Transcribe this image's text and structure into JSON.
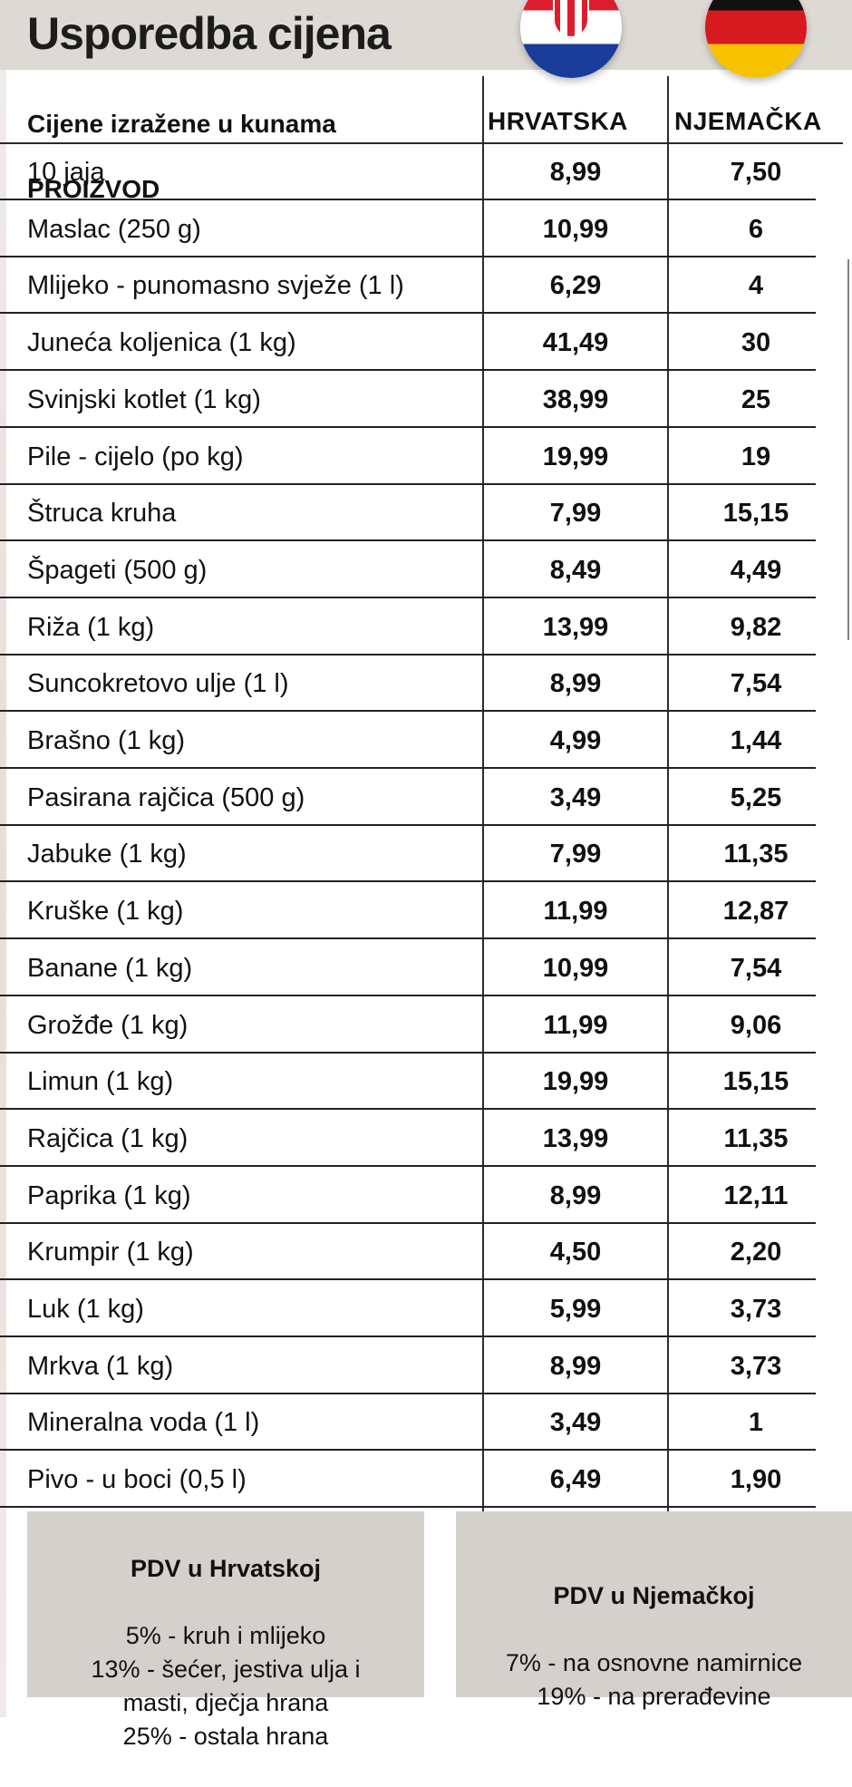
{
  "title": "Usporedba cijena",
  "subheader": {
    "unit_note": "Cijene izražene u kunama",
    "product_header": "PROIZVOD"
  },
  "columns": {
    "croatia": "HRVATSKA",
    "germany": "NJEMAČKA"
  },
  "rows": [
    {
      "product": "10 jaja",
      "croatia": "8,99",
      "germany": "7,50"
    },
    {
      "product": "Maslac (250 g)",
      "croatia": "10,99",
      "germany": "6"
    },
    {
      "product": "Mlijeko - punomasno svježe (1 l)",
      "croatia": "6,29",
      "germany": "4"
    },
    {
      "product": "Juneća koljenica (1 kg)",
      "croatia": "41,49",
      "germany": "30"
    },
    {
      "product": "Svinjski kotlet (1 kg)",
      "croatia": "38,99",
      "germany": "25"
    },
    {
      "product": "Pile - cijelo (po kg)",
      "croatia": "19,99",
      "germany": "19"
    },
    {
      "product": "Štruca kruha",
      "croatia": "7,99",
      "germany": "15,15"
    },
    {
      "product": "Špageti (500 g)",
      "croatia": "8,49",
      "germany": "4,49"
    },
    {
      "product": "Riža (1 kg)",
      "croatia": "13,99",
      "germany": "9,82"
    },
    {
      "product": "Suncokretovo ulje (1 l)",
      "croatia": "8,99",
      "germany": "7,54"
    },
    {
      "product": "Brašno (1 kg)",
      "croatia": "4,99",
      "germany": "1,44"
    },
    {
      "product": "Pasirana rajčica (500 g)",
      "croatia": "3,49",
      "germany": "5,25"
    },
    {
      "product": "Jabuke (1 kg)",
      "croatia": "7,99",
      "germany": "11,35"
    },
    {
      "product": "Kruške (1 kg)",
      "croatia": "11,99",
      "germany": "12,87"
    },
    {
      "product": "Banane (1 kg)",
      "croatia": "10,99",
      "germany": "7,54"
    },
    {
      "product": "Grožđe (1 kg)",
      "croatia": "11,99",
      "germany": "9,06"
    },
    {
      "product": "Limun (1 kg)",
      "croatia": "19,99",
      "germany": "15,15"
    },
    {
      "product": "Rajčica (1 kg)",
      "croatia": "13,99",
      "germany": "11,35"
    },
    {
      "product": "Paprika (1 kg)",
      "croatia": "8,99",
      "germany": "12,11"
    },
    {
      "product": "Krumpir (1 kg)",
      "croatia": "4,50",
      "germany": "2,20"
    },
    {
      "product": "Luk (1 kg)",
      "croatia": "5,99",
      "germany": "3,73"
    },
    {
      "product": "Mrkva (1 kg)",
      "croatia": "8,99",
      "germany": "3,73"
    },
    {
      "product": "Mineralna voda (1 l)",
      "croatia": "3,49",
      "germany": "1"
    },
    {
      "product": "Pivo - u boci (0,5 l)",
      "croatia": "6,49",
      "germany": "1,90"
    }
  ],
  "vat": {
    "croatia_title": "PDV u Hrvatskoj",
    "croatia_text": "5% - kruh i mlijeko\n13% - šećer, jestiva ulja i\nmasti, dječja hrana\n25% - ostala hrana",
    "germany_title": "PDV u Njemačkoj",
    "germany_text": "7% - na osnovne namirnice\n19% - na prerađevine"
  },
  "icons": {
    "croatia_flag": "croatia-flag-icon",
    "germany_flag": "germany-flag-icon"
  },
  "colors": {
    "header_background": "#ddd9d4",
    "vat_background": "#d4d1cd",
    "table_lines": "#222222"
  }
}
